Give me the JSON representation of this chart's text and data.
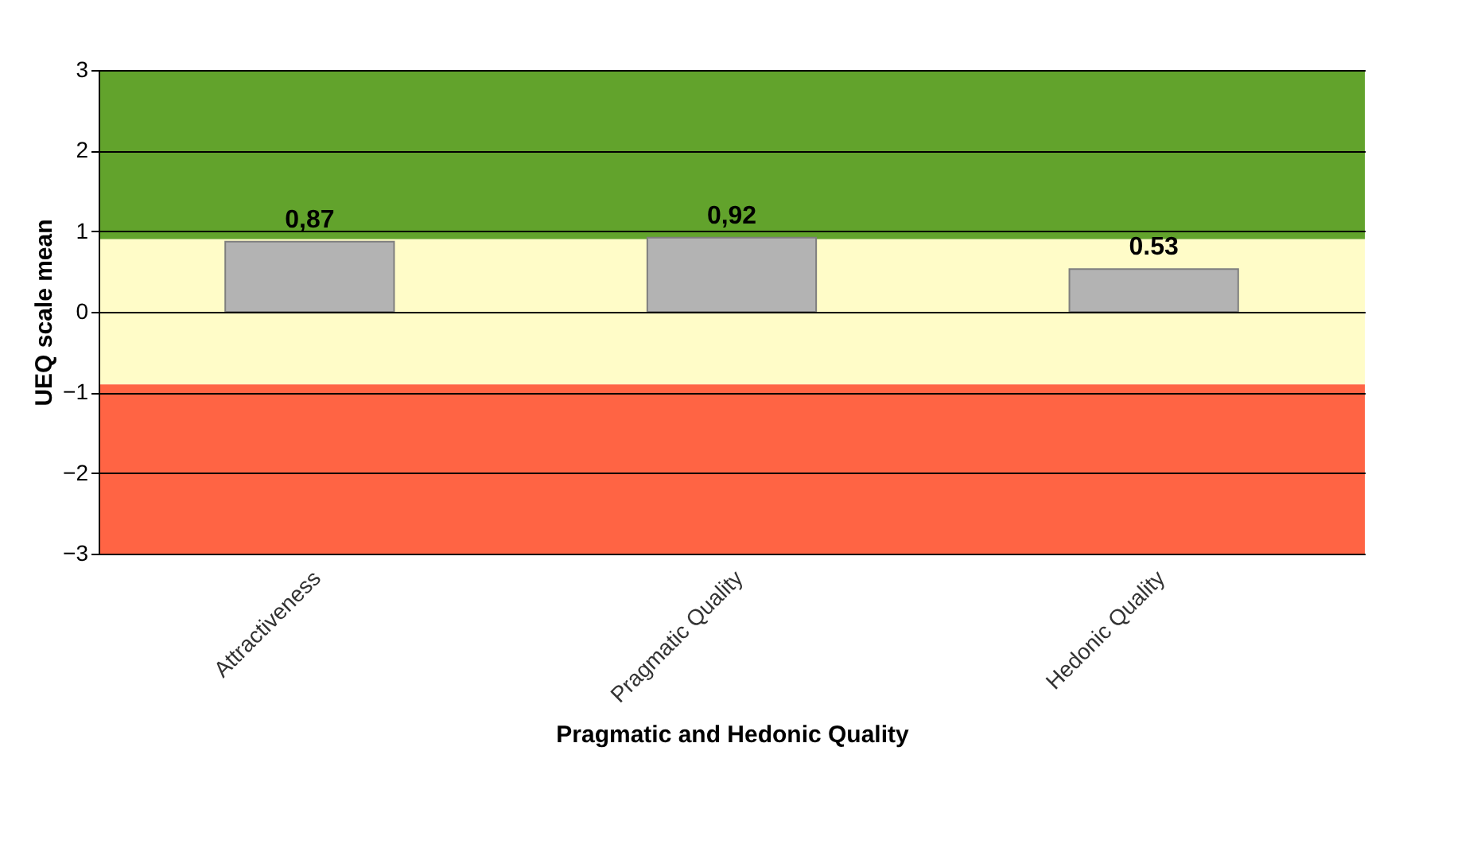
{
  "chart_data": {
    "type": "bar",
    "xlabel": "Pragmatic and Hedonic Quality",
    "ylabel": "UEQ scale mean",
    "categories": [
      "Attractiveness",
      "Pragmatic Quality",
      "Hedonic Quality"
    ],
    "values": [
      0.87,
      0.92,
      0.53
    ],
    "value_labels": [
      "0,87",
      "0,92",
      "0.53"
    ],
    "color": "#b3b3b3",
    "ylim": [
      -3,
      3
    ],
    "yticks": [
      -3,
      -2,
      -1,
      0,
      1,
      2,
      3
    ],
    "grid": "y",
    "bands": [
      {
        "axis": "y",
        "from": 0.9,
        "to": 3,
        "color": "#62a32c"
      },
      {
        "axis": "y",
        "from": -0.9,
        "to": 0.9,
        "color": "#fffcc8"
      },
      {
        "axis": "y",
        "from": -3,
        "to": -0.9,
        "color": "#ff6444"
      }
    ]
  }
}
